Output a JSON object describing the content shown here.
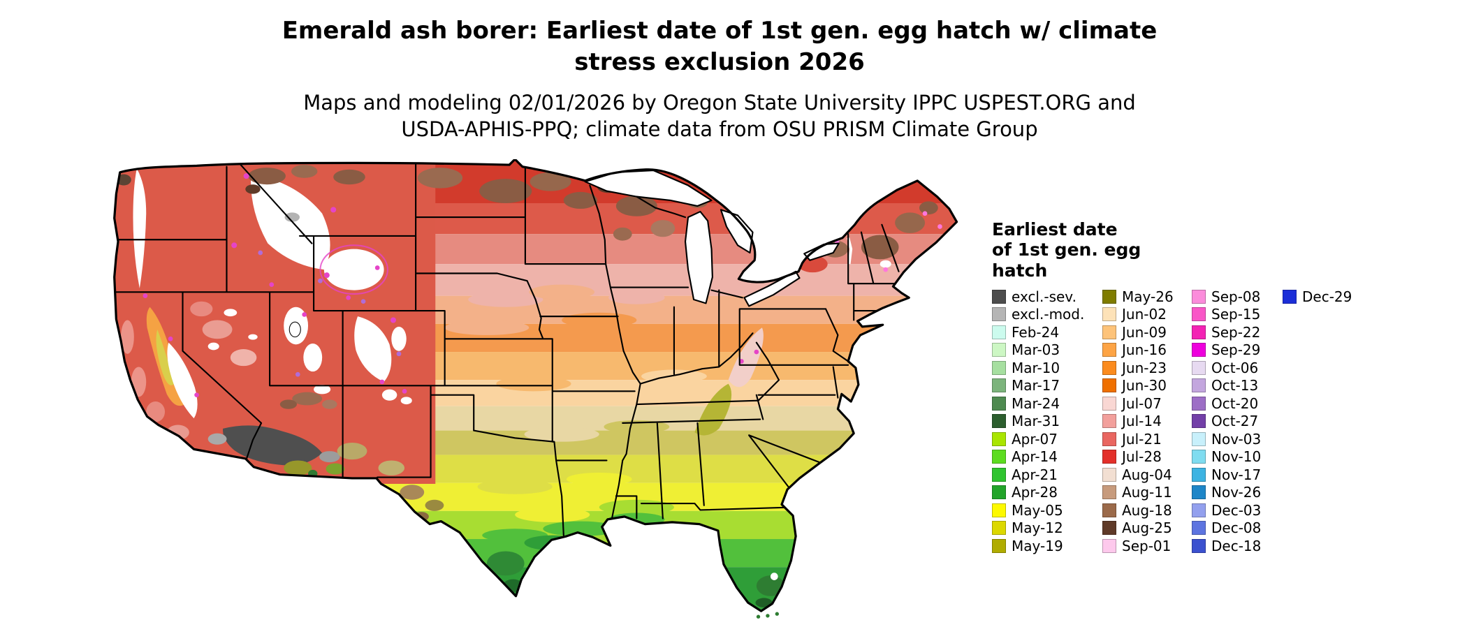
{
  "title": {
    "line1": "Emerald ash borer: Earliest date of 1st gen. egg hatch w/ climate",
    "line2": "stress exclusion 2026"
  },
  "subtitle": {
    "line1": "Maps and modeling 02/01/2026 by Oregon State University IPPC USPEST.ORG and",
    "line2": "USDA-APHIS-PPQ; climate data from OSU PRISM Climate Group"
  },
  "legend": {
    "title_lines": [
      "Earliest date",
      "of 1st gen. egg",
      "hatch"
    ],
    "columns": [
      {
        "items": [
          {
            "label": "excl.-sev.",
            "color": "#4d4d4d"
          },
          {
            "label": "excl.-mod.",
            "color": "#b5b5b5"
          },
          {
            "label": "Feb-24",
            "color": "#ccfbee"
          },
          {
            "label": "Mar-03",
            "color": "#cdf7c4"
          },
          {
            "label": "Mar-10",
            "color": "#a6dfa0"
          },
          {
            "label": "Mar-17",
            "color": "#7cb47c"
          },
          {
            "label": "Mar-24",
            "color": "#4e8a50"
          },
          {
            "label": "Mar-31",
            "color": "#2c5e2e"
          },
          {
            "label": "Apr-07",
            "color": "#a9e500"
          },
          {
            "label": "Apr-14",
            "color": "#5ddc20"
          },
          {
            "label": "Apr-21",
            "color": "#2fc42f"
          },
          {
            "label": "Apr-28",
            "color": "#22a42a"
          },
          {
            "label": "May-05",
            "color": "#fdf900"
          },
          {
            "label": "May-12",
            "color": "#dcd800"
          },
          {
            "label": "May-19",
            "color": "#b0ac00"
          }
        ]
      },
      {
        "items": [
          {
            "label": "May-26",
            "color": "#7f7c00"
          },
          {
            "label": "Jun-02",
            "color": "#fde2b8"
          },
          {
            "label": "Jun-09",
            "color": "#fdc37a"
          },
          {
            "label": "Jun-16",
            "color": "#fda445"
          },
          {
            "label": "Jun-23",
            "color": "#fb8b1e"
          },
          {
            "label": "Jun-30",
            "color": "#ef7000"
          },
          {
            "label": "Jul-07",
            "color": "#f9d7d3"
          },
          {
            "label": "Jul-14",
            "color": "#f2a09c"
          },
          {
            "label": "Jul-21",
            "color": "#e96660"
          },
          {
            "label": "Jul-28",
            "color": "#e3302a"
          },
          {
            "label": "Aug-04",
            "color": "#f2dfd2"
          },
          {
            "label": "Aug-11",
            "color": "#c79b7d"
          },
          {
            "label": "Aug-18",
            "color": "#9b6a4a"
          },
          {
            "label": "Aug-25",
            "color": "#5f3a28"
          },
          {
            "label": "Sep-01",
            "color": "#fdc9ec"
          }
        ]
      },
      {
        "items": [
          {
            "label": "Sep-08",
            "color": "#fb8cdb"
          },
          {
            "label": "Sep-15",
            "color": "#f956c7"
          },
          {
            "label": "Sep-22",
            "color": "#f323b4"
          },
          {
            "label": "Sep-29",
            "color": "#ee00dd"
          },
          {
            "label": "Oct-06",
            "color": "#e7daf1"
          },
          {
            "label": "Oct-13",
            "color": "#c3a6de"
          },
          {
            "label": "Oct-20",
            "color": "#9d6ec6"
          },
          {
            "label": "Oct-27",
            "color": "#7340a8"
          },
          {
            "label": "Nov-03",
            "color": "#c8f0fb"
          },
          {
            "label": "Nov-10",
            "color": "#7fdcf0"
          },
          {
            "label": "Nov-17",
            "color": "#3cb3e2"
          },
          {
            "label": "Nov-26",
            "color": "#1e86c8"
          },
          {
            "label": "Dec-03",
            "color": "#93a0ee"
          },
          {
            "label": "Dec-08",
            "color": "#5d74e0"
          },
          {
            "label": "Dec-18",
            "color": "#3b51cf"
          }
        ]
      },
      {
        "items": [
          {
            "label": "Dec-29",
            "color": "#1c2ed8"
          }
        ]
      }
    ]
  }
}
